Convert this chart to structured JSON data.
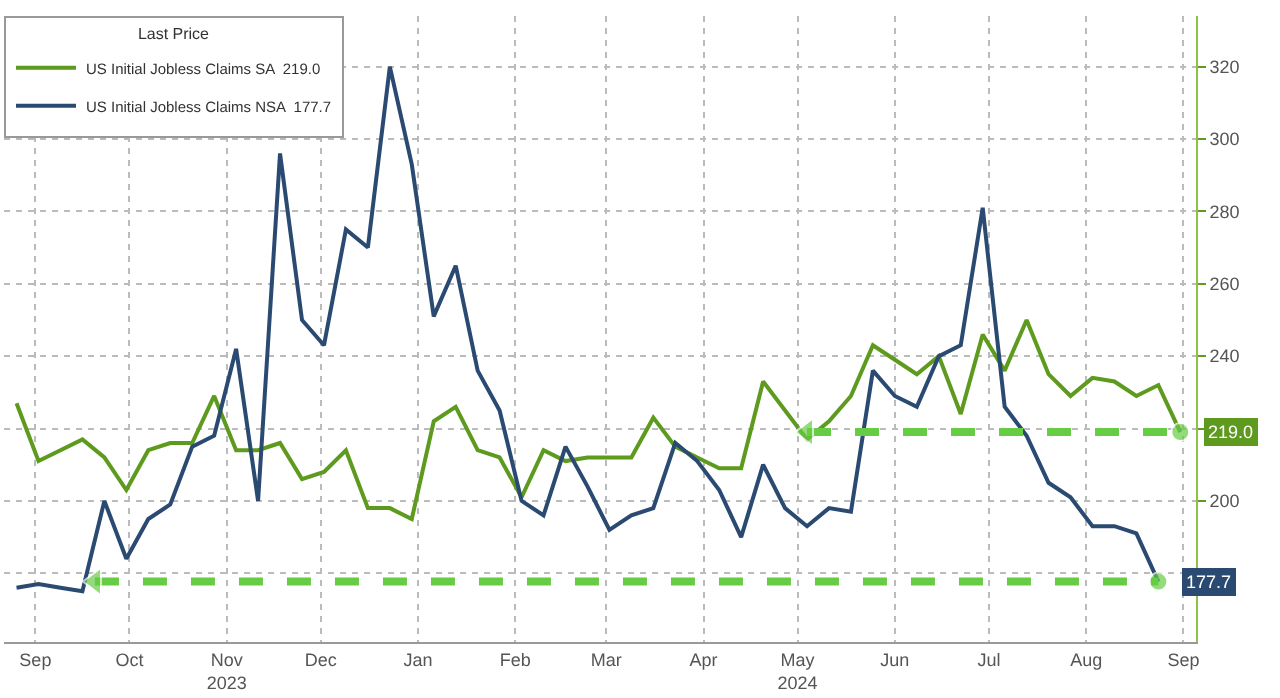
{
  "chart_data": {
    "type": "line",
    "x": [
      "2023-09-09",
      "2023-09-16",
      "2023-09-23",
      "2023-09-30",
      "2023-10-07",
      "2023-10-14",
      "2023-10-21",
      "2023-10-28",
      "2023-11-04",
      "2023-11-11",
      "2023-11-18",
      "2023-11-25",
      "2023-12-02",
      "2023-12-09",
      "2023-12-16",
      "2023-12-23",
      "2023-12-30",
      "2024-01-06",
      "2024-01-13",
      "2024-01-20",
      "2024-01-27",
      "2024-02-03",
      "2024-02-10",
      "2024-02-17",
      "2024-02-24",
      "2024-03-02",
      "2024-03-09",
      "2024-03-16",
      "2024-03-23",
      "2024-03-30",
      "2024-04-06",
      "2024-04-13",
      "2024-04-20",
      "2024-04-27",
      "2024-05-04",
      "2024-05-11",
      "2024-05-18",
      "2024-05-25",
      "2024-06-01",
      "2024-06-08",
      "2024-06-15",
      "2024-06-22",
      "2024-06-29",
      "2024-07-06",
      "2024-07-13",
      "2024-07-20",
      "2024-07-27",
      "2024-08-03",
      "2024-08-10",
      "2024-08-17",
      "2024-08-24",
      "2024-08-31",
      "2024-09-07",
      "2024-09-14"
    ],
    "series": [
      {
        "name": "US Initial Jobless Claims SA  219.0",
        "color": "#5e9a1e",
        "values": [
          227,
          211,
          214,
          217,
          212,
          203,
          214,
          216,
          216,
          229,
          214,
          214,
          216,
          206,
          208,
          214,
          198,
          198,
          195,
          222,
          226,
          214,
          212,
          201,
          214,
          211,
          212,
          212,
          212,
          223,
          215,
          212,
          209,
          209,
          233,
          225,
          217,
          222,
          229,
          243,
          239,
          235,
          240,
          224,
          246,
          236,
          250,
          235,
          229,
          234,
          233,
          229,
          232,
          219
        ]
      },
      {
        "name": "US Initial Jobless Claims NSA  177.7",
        "color": "#2a4a72",
        "values": [
          176,
          177,
          176,
          175,
          200,
          184,
          195,
          199,
          215,
          218,
          242,
          200,
          296,
          250,
          243,
          275,
          270,
          320,
          293,
          251,
          265,
          236,
          225,
          200,
          196,
          215,
          204,
          192,
          196,
          198,
          216,
          211,
          203,
          190,
          210,
          198,
          193,
          198,
          197,
          236,
          229,
          226,
          240,
          243,
          281,
          226,
          218,
          205,
          201,
          193,
          193,
          191,
          177.7,
          null
        ]
      },
      {
        "type": "line",
        "line_style": "dashed",
        "marker": "triangle",
        "color": "#66cc44",
        "x": [
          "2024-05-18",
          "2024-09-14"
        ],
        "values": [
          219,
          219
        ]
      },
      {
        "type": "line",
        "line_style": "dashed",
        "marker": "triangle",
        "color": "#66cc44",
        "x": [
          "2023-10-04",
          "2024-09-07"
        ],
        "values": [
          177.7,
          177.7
        ]
      }
    ],
    "legend_title": "Last Price",
    "legend": "top left",
    "ylim": [
      161,
      334
    ],
    "yticks": [
      {
        "value": 180,
        "label": null
      },
      200,
      {
        "value": 220,
        "label": null
      },
      240,
      260,
      280,
      300,
      320
    ],
    "xlim": [
      "2023-09-05",
      "2024-09-19"
    ],
    "xticks": [
      {
        "value": "2023-09-15",
        "label": "Sep"
      },
      {
        "value": "2023-10-15",
        "label": "Oct"
      },
      {
        "value": "2023-11-15",
        "label": "Nov\n2023"
      },
      {
        "value": "2023-12-15",
        "label": "Dec"
      },
      {
        "value": "2024-01-15",
        "label": "Jan"
      },
      {
        "value": "2024-02-15",
        "label": "Feb"
      },
      {
        "value": "2024-03-15",
        "label": "Mar"
      },
      {
        "value": "2024-04-15",
        "label": "Apr"
      },
      {
        "value": "2024-05-15",
        "label": "May\n2024"
      },
      {
        "value": "2024-06-15",
        "label": "Jun"
      },
      {
        "value": "2024-07-15",
        "label": "Jul"
      },
      {
        "value": "2024-08-15",
        "label": "Aug"
      },
      {
        "value": "2024-09-15",
        "label": "Sep"
      }
    ],
    "annotations": [
      {
        "text": "219.0",
        "x": "2024-09-14",
        "y": 219
      },
      {
        "text": "177.7",
        "x": "2024-09-07",
        "y": 177.7
      }
    ],
    "grid": true,
    "line_style": "solid"
  }
}
